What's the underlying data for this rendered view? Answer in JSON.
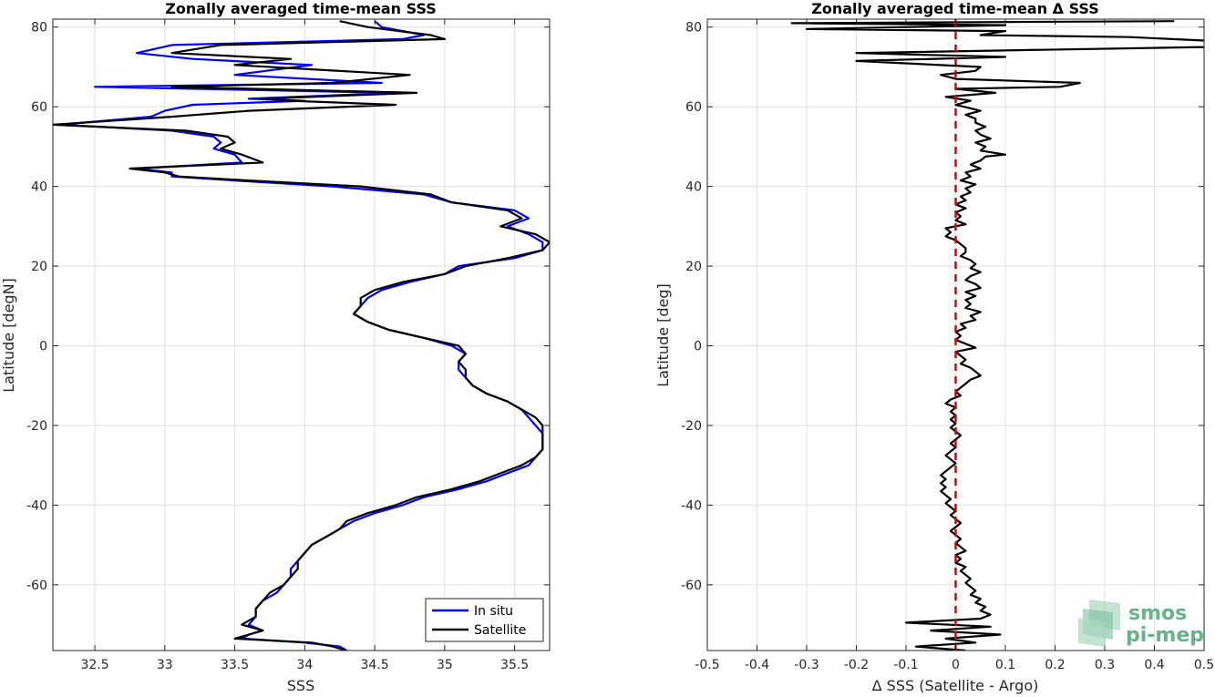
{
  "chart_data": [
    {
      "type": "line",
      "title": "Zonally averaged time-mean SSS",
      "xlabel": "SSS",
      "ylabel": "Latitude [degN]",
      "xlim": [
        32.2,
        35.75
      ],
      "ylim": [
        -76.5,
        82
      ],
      "xticks": [
        "32.5",
        "33",
        "33.5",
        "34",
        "34.5",
        "35",
        "35.5"
      ],
      "yticks": [
        "-60",
        "-40",
        "-20",
        "0",
        "20",
        "40",
        "60",
        "80"
      ],
      "grid": true,
      "legend_position": "bottom-right",
      "series": [
        {
          "name": "In situ",
          "color": "#0000ff",
          "lat": [
            81.5,
            80,
            78,
            77,
            75.5,
            73.5,
            72,
            70.5,
            68,
            66,
            65,
            63.5,
            62,
            61.5,
            60.5,
            59,
            57.5,
            55.5,
            54,
            52.5,
            51,
            49.5,
            48,
            46,
            44.5,
            43.5,
            42.5,
            41.5,
            40,
            38,
            36,
            34,
            32,
            30,
            28,
            26,
            24,
            22,
            20,
            18,
            16,
            14,
            12,
            10,
            8,
            6,
            4,
            2,
            0,
            -2,
            -4,
            -6,
            -8,
            -10,
            -12,
            -14,
            -16,
            -18,
            -20,
            -22,
            -24,
            -26,
            -28,
            -30,
            -32,
            -34,
            -36,
            -38,
            -40,
            -42,
            -44,
            -46,
            -48,
            -50,
            -52,
            -54,
            -56,
            -58,
            -60,
            -62,
            -64,
            -66,
            -68,
            -70,
            -71.5,
            -72.5,
            -73.5,
            -74.5,
            -75.5,
            -76.5
          ],
          "values": [
            34.5,
            34.55,
            34.85,
            34.7,
            33.05,
            32.8,
            33.2,
            34.05,
            33.5,
            34.55,
            32.5,
            34.65,
            33.6,
            34.0,
            33.2,
            33.0,
            32.9,
            32.25,
            33.05,
            33.35,
            33.4,
            33.35,
            33.5,
            33.55,
            32.8,
            33.05,
            33.05,
            33.5,
            34.2,
            34.85,
            35.05,
            35.5,
            35.6,
            35.45,
            35.6,
            35.7,
            35.7,
            35.5,
            35.1,
            35.0,
            34.75,
            34.55,
            34.45,
            34.4,
            34.35,
            34.45,
            34.6,
            34.85,
            35.05,
            35.15,
            35.1,
            35.1,
            35.15,
            35.2,
            35.3,
            35.45,
            35.55,
            35.6,
            35.65,
            35.7,
            35.7,
            35.7,
            35.65,
            35.6,
            35.45,
            35.3,
            35.1,
            34.85,
            34.7,
            34.5,
            34.35,
            34.25,
            34.15,
            34.05,
            34.0,
            33.95,
            33.9,
            33.9,
            33.85,
            33.8,
            33.7,
            33.65,
            33.65,
            33.6,
            33.7,
            33.6,
            33.55,
            34.0,
            34.25,
            34.3
          ]
        },
        {
          "name": "Satellite",
          "color": "#000000",
          "lat": [
            81.5,
            80,
            78,
            77,
            75.5,
            73.5,
            72,
            70.5,
            68,
            66,
            65,
            63.5,
            62,
            61.5,
            60.5,
            59,
            57.5,
            55.5,
            54,
            52.5,
            51,
            49.5,
            48,
            46,
            44.5,
            43.5,
            42.5,
            41.5,
            40,
            38,
            36,
            34,
            32,
            30,
            28,
            26,
            24,
            22,
            20,
            18,
            16,
            14,
            12,
            10,
            8,
            6,
            4,
            2,
            0,
            -2,
            -4,
            -6,
            -8,
            -10,
            -12,
            -14,
            -16,
            -18,
            -20,
            -22,
            -24,
            -26,
            -28,
            -30,
            -32,
            -34,
            -36,
            -38,
            -40,
            -42,
            -44,
            -46,
            -48,
            -50,
            -52,
            -54,
            -56,
            -58,
            -60,
            -62,
            -64,
            -66,
            -68,
            -70,
            -71.5,
            -72.5,
            -73.5,
            -74.5,
            -75.5,
            -76.5
          ],
          "values": [
            34.25,
            34.45,
            34.9,
            35.0,
            33.4,
            33.05,
            33.9,
            33.5,
            34.75,
            34.2,
            33.05,
            34.8,
            33.7,
            33.9,
            34.65,
            33.6,
            33.05,
            32.2,
            33.15,
            33.45,
            33.5,
            33.4,
            33.55,
            33.7,
            32.75,
            33.0,
            33.1,
            33.6,
            34.4,
            34.9,
            35.05,
            35.45,
            35.55,
            35.4,
            35.65,
            35.75,
            35.7,
            35.45,
            35.15,
            35.0,
            34.7,
            34.5,
            34.4,
            34.4,
            34.35,
            34.45,
            34.6,
            34.85,
            35.1,
            35.15,
            35.1,
            35.15,
            35.15,
            35.2,
            35.3,
            35.45,
            35.55,
            35.65,
            35.7,
            35.7,
            35.7,
            35.7,
            35.65,
            35.55,
            35.4,
            35.25,
            35.05,
            34.8,
            34.65,
            34.45,
            34.3,
            34.25,
            34.15,
            34.05,
            34.0,
            33.95,
            33.95,
            33.9,
            33.85,
            33.75,
            33.7,
            33.65,
            33.65,
            33.55,
            33.7,
            33.6,
            33.5,
            34.05,
            34.2,
            34.3
          ]
        }
      ]
    },
    {
      "type": "line",
      "title": "Zonally averaged time-mean Δ SSS",
      "xlabel": "Δ SSS (Satellite - Argo)",
      "ylabel": "Latitude [deg]",
      "xlim": [
        -0.5,
        0.5
      ],
      "ylim": [
        -76.5,
        82
      ],
      "xticks": [
        "-0.5",
        "-0.4",
        "-0.3",
        "-0.2",
        "-0.1",
        "0",
        "0.1",
        "0.2",
        "0.3",
        "0.4",
        "0.5"
      ],
      "yticks": [
        "-60",
        "-40",
        "-20",
        "0",
        "20",
        "40",
        "60",
        "80"
      ],
      "grid": true,
      "reference_line": {
        "x": 0,
        "color": "#e00000",
        "style": "dashed"
      },
      "series": [
        {
          "color": "#000000",
          "lat": [
            81.5,
            81,
            80.5,
            79.5,
            79,
            78,
            77.5,
            76.5,
            75,
            73.5,
            72.5,
            71.5,
            70,
            69,
            68,
            67,
            66,
            65,
            64.5,
            63.5,
            62.5,
            61.5,
            60.5,
            59,
            58,
            57,
            56,
            55,
            54,
            53,
            52,
            51,
            50,
            49,
            48,
            47.5,
            46.5,
            45.5,
            44.5,
            43.5,
            42.5,
            41.5,
            40.5,
            39.5,
            38.5,
            37.5,
            36.5,
            35.5,
            34.5,
            33.5,
            32.5,
            31.5,
            30.5,
            29.5,
            28.5,
            27.5,
            26.5,
            25.5,
            24.5,
            23.5,
            22.5,
            21.5,
            20.5,
            19.5,
            18.5,
            17.5,
            16.5,
            15.5,
            14.5,
            13.5,
            12.5,
            11.5,
            10.5,
            9.5,
            8.5,
            7.5,
            6.5,
            5.5,
            4.5,
            3.5,
            2.5,
            1.5,
            0.5,
            -0.5,
            -1.5,
            -2.5,
            -3.5,
            -4.5,
            -5.5,
            -6.5,
            -7.5,
            -8.5,
            -9.5,
            -10.5,
            -11.5,
            -12.5,
            -13.5,
            -14.5,
            -15.5,
            -16.5,
            -17.5,
            -18.5,
            -19.5,
            -20.5,
            -21.5,
            -22.5,
            -23.5,
            -24.5,
            -25.5,
            -26.5,
            -27.5,
            -28.5,
            -29.5,
            -30.5,
            -31.5,
            -32.5,
            -33.5,
            -34.5,
            -35.5,
            -36.5,
            -37.5,
            -38.5,
            -39.5,
            -40.5,
            -41.5,
            -42.5,
            -43.5,
            -44.5,
            -45.5,
            -46.5,
            -47.5,
            -48.5,
            -49.5,
            -50.5,
            -51.5,
            -52.5,
            -53.5,
            -54.5,
            -55.5,
            -56.5,
            -57.5,
            -58.5,
            -59.5,
            -60.5,
            -61.5,
            -62.5,
            -63.5,
            -64.5,
            -65.5,
            -66.5,
            -67.5,
            -68.5,
            -69.5,
            -70.5,
            -71.5,
            -72.5,
            -73.5,
            -74.5,
            -75.5,
            -76.5
          ],
          "values": [
            0.44,
            -0.33,
            0.1,
            -0.3,
            0.1,
            0.05,
            0.35,
            0.52,
            0.5,
            -0.2,
            0.1,
            -0.2,
            0.05,
            0.04,
            -0.03,
            0.0,
            0.25,
            0.21,
            0.0,
            0.08,
            -0.02,
            0.03,
            0.0,
            0.05,
            0.02,
            0.04,
            0.04,
            0.06,
            0.04,
            0.05,
            0.07,
            0.04,
            0.06,
            0.05,
            0.1,
            0.06,
            0.05,
            0.03,
            0.05,
            0.02,
            0.03,
            0.01,
            0.04,
            0.02,
            0.03,
            0.01,
            0.02,
            0.0,
            0.02,
            0.0,
            0.01,
            0.0,
            0.02,
            -0.02,
            -0.01,
            -0.02,
            0.0,
            0.01,
            0.02,
            0.02,
            0.01,
            0.03,
            0.04,
            0.03,
            0.05,
            0.03,
            0.02,
            0.04,
            0.05,
            0.02,
            0.04,
            0.02,
            0.03,
            0.02,
            0.05,
            0.03,
            0.04,
            0.01,
            0.02,
            0.0,
            0.01,
            0.0,
            0.02,
            0.04,
            0.0,
            0.01,
            0.02,
            0.01,
            0.03,
            0.04,
            0.05,
            0.03,
            0.02,
            0.01,
            0.0,
            0.01,
            -0.01,
            -0.02,
            0.0,
            -0.01,
            0.0,
            -0.01,
            0.0,
            -0.01,
            0.0,
            0.01,
            0.0,
            -0.01,
            0.0,
            -0.01,
            -0.02,
            -0.01,
            0.0,
            -0.01,
            -0.02,
            -0.03,
            -0.02,
            -0.03,
            -0.02,
            -0.03,
            -0.02,
            -0.01,
            -0.02,
            -0.01,
            0.0,
            -0.01,
            0.0,
            0.01,
            0.0,
            -0.01,
            0.0,
            0.01,
            0.0,
            0.01,
            0.02,
            0.0,
            0.01,
            0.0,
            0.02,
            0.01,
            0.02,
            0.03,
            0.02,
            0.03,
            0.04,
            0.03,
            0.05,
            0.04,
            0.06,
            0.05,
            0.07,
            0.05,
            -0.1,
            0.07,
            -0.05,
            0.09,
            -0.02,
            0.04,
            -0.08,
            0.02
          ]
        }
      ]
    }
  ],
  "legend": {
    "items": [
      "In situ",
      "Satellite"
    ]
  },
  "logo": {
    "line1": "smos",
    "line2": "pi-mep",
    "color": "#66b38a"
  }
}
